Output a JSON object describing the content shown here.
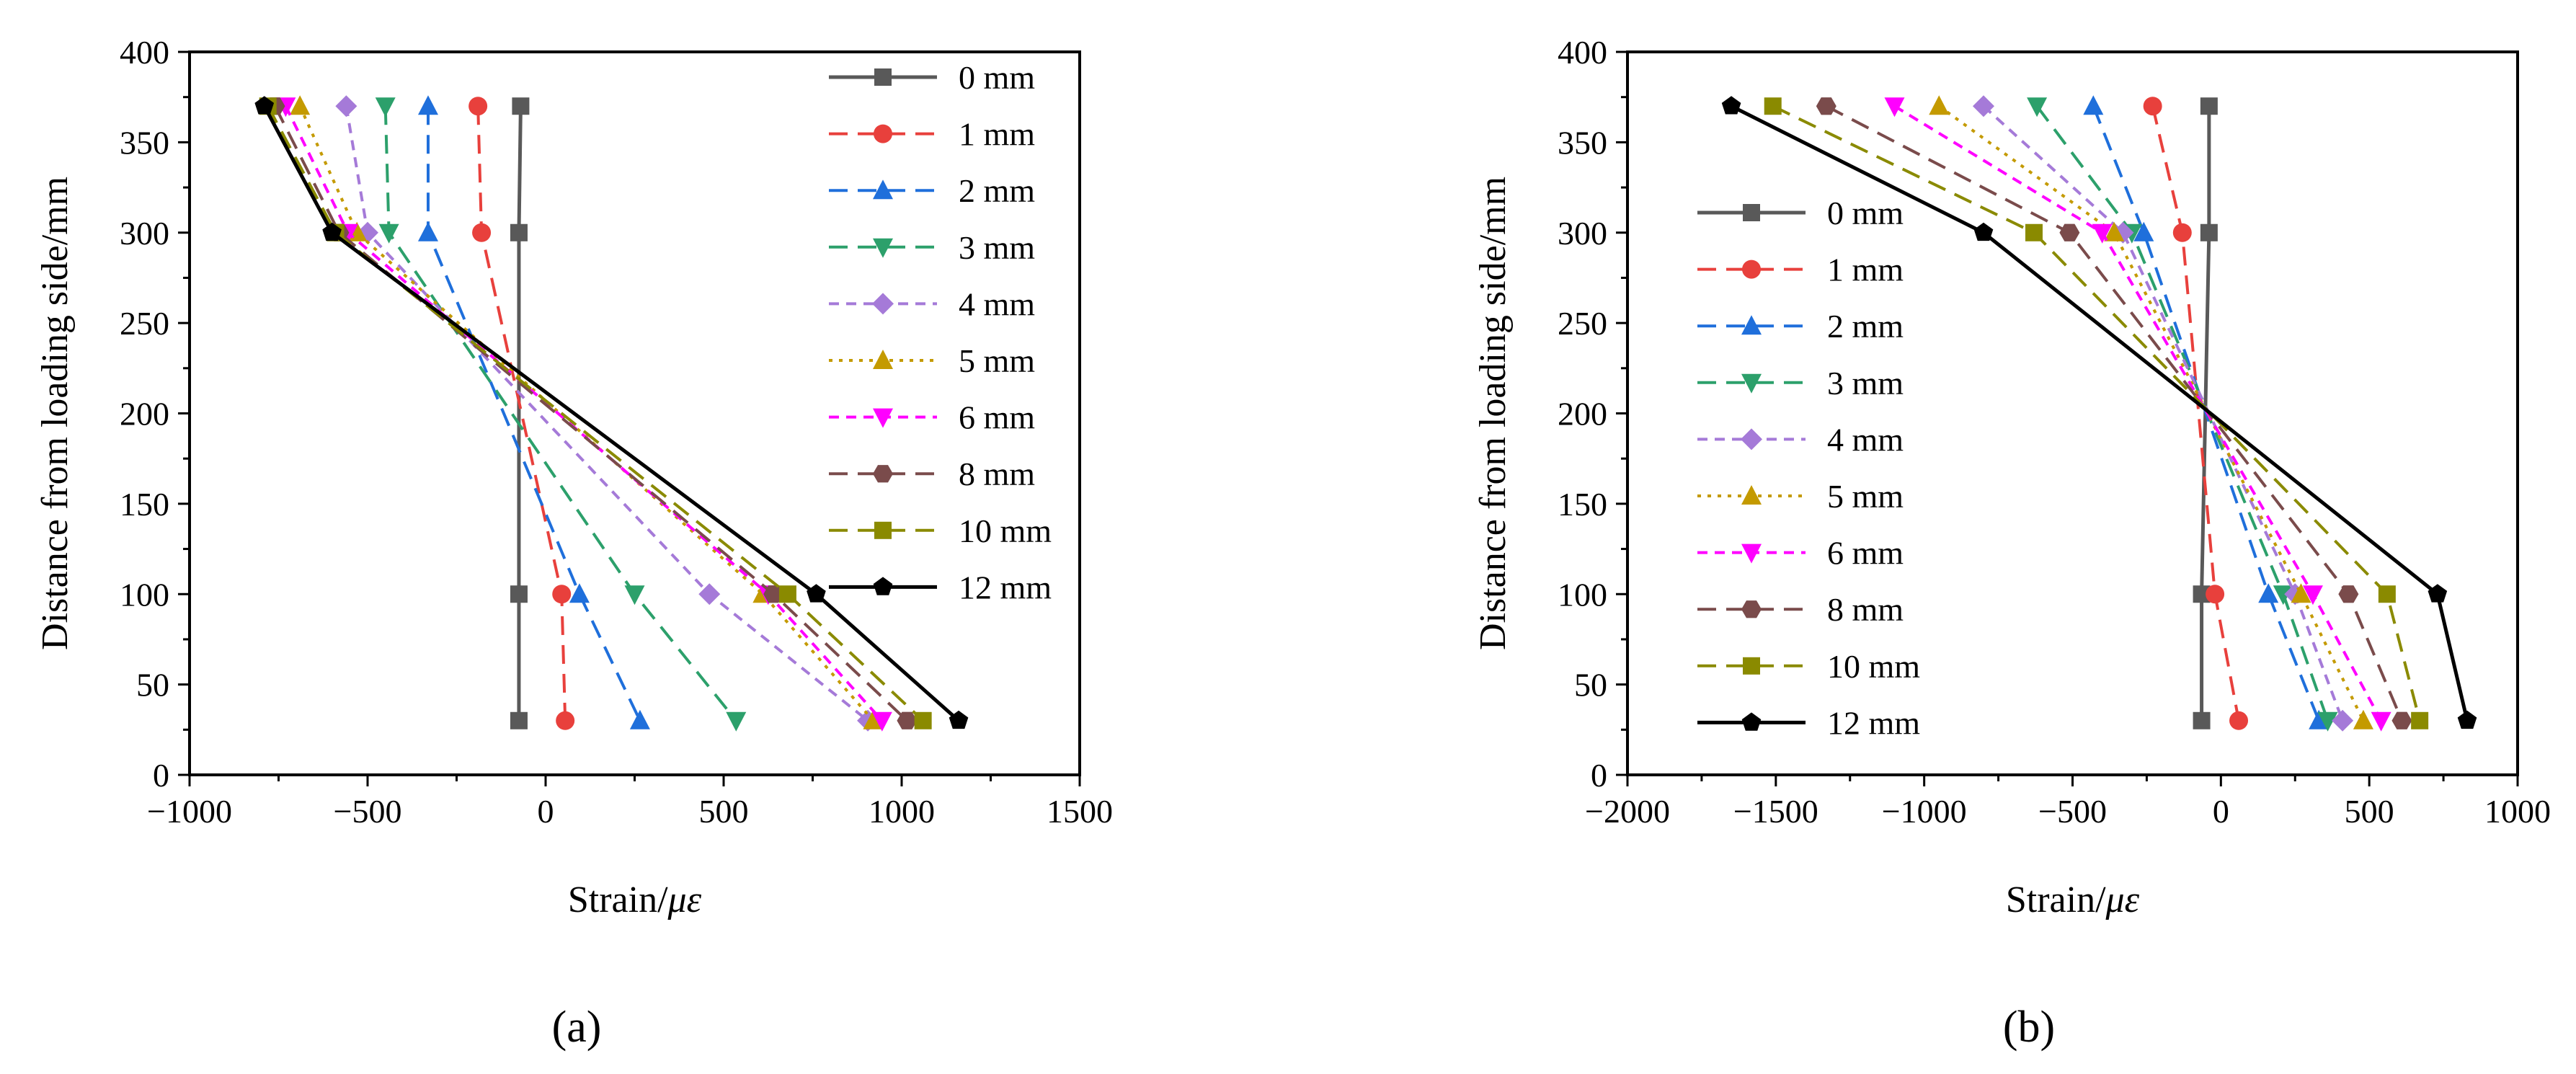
{
  "figure": {
    "panel_labels": [
      "(a)",
      "(b)"
    ]
  },
  "chart_data": [
    {
      "type": "line",
      "panel": "(a)",
      "xlabel_main": "Strain/",
      "xlabel_unit": "με",
      "ylabel": "Distance from loading side/mm",
      "xlim": [
        -1000,
        1500
      ],
      "ylim": [
        0,
        400
      ],
      "xticks": [
        -1000,
        -500,
        0,
        500,
        1000,
        1500
      ],
      "xtick_labels": [
        "−1000",
        "−500",
        "0",
        "500",
        "1000",
        "1500"
      ],
      "yticks": [
        0,
        50,
        100,
        150,
        200,
        250,
        300,
        350,
        400
      ],
      "ytick_labels": [
        "0",
        "50",
        "100",
        "150",
        "200",
        "250",
        "300",
        "350",
        "400"
      ],
      "y": [
        370,
        300,
        100,
        30
      ],
      "legend_position": "top-right",
      "series": [
        {
          "name": "0 mm",
          "x": [
            -70,
            -75,
            -75,
            -75
          ],
          "color": "#595959",
          "marker": "square",
          "dash": "solid"
        },
        {
          "name": "1 mm",
          "x": [
            -190,
            -180,
            45,
            55
          ],
          "color": "#e8403c",
          "marker": "circle",
          "dash": "long"
        },
        {
          "name": "2 mm",
          "x": [
            -330,
            -330,
            95,
            265
          ],
          "color": "#1f6fdb",
          "marker": "triangle",
          "dash": "long"
        },
        {
          "name": "3 mm",
          "x": [
            -450,
            -440,
            250,
            535
          ],
          "color": "#2ca06b",
          "marker": "tri-down",
          "dash": "long"
        },
        {
          "name": "4 mm",
          "x": [
            -560,
            -500,
            460,
            905
          ],
          "color": "#a57ad8",
          "marker": "diamond",
          "dash": "short"
        },
        {
          "name": "5 mm",
          "x": [
            -690,
            -530,
            610,
            920
          ],
          "color": "#c49a00",
          "marker": "triangle",
          "dash": "dot"
        },
        {
          "name": "6 mm",
          "x": [
            -730,
            -555,
            625,
            945
          ],
          "color": "#ff00ff",
          "marker": "tri-down",
          "dash": "short"
        },
        {
          "name": "8 mm",
          "x": [
            -760,
            -580,
            640,
            1015
          ],
          "color": "#7a4b4b",
          "marker": "hexagon",
          "dash": "long"
        },
        {
          "name": "10 mm",
          "x": [
            -780,
            -590,
            680,
            1060
          ],
          "color": "#8a8a00",
          "marker": "square",
          "dash": "long"
        },
        {
          "name": "12 mm",
          "x": [
            -790,
            -600,
            760,
            1160
          ],
          "color": "#000000",
          "marker": "pentagon",
          "dash": "solid"
        }
      ]
    },
    {
      "type": "line",
      "panel": "(b)",
      "xlabel_main": "Strain/",
      "xlabel_unit": "με",
      "ylabel": "Distance from loading side/mm",
      "xlim": [
        -2000,
        1000
      ],
      "ylim": [
        0,
        400
      ],
      "xticks": [
        -2000,
        -1500,
        -1000,
        -500,
        0,
        500,
        1000
      ],
      "xtick_labels": [
        "−2000",
        "−1500",
        "−1000",
        "−500",
        "0",
        "500",
        "1000"
      ],
      "yticks": [
        0,
        50,
        100,
        150,
        200,
        250,
        300,
        350,
        400
      ],
      "ytick_labels": [
        "0",
        "50",
        "100",
        "150",
        "200",
        "250",
        "300",
        "350",
        "400"
      ],
      "y": [
        370,
        300,
        100,
        30
      ],
      "legend_position": "left",
      "series": [
        {
          "name": "0 mm",
          "x": [
            -40,
            -40,
            -65,
            -65
          ],
          "color": "#595959",
          "marker": "square",
          "dash": "solid"
        },
        {
          "name": "1 mm",
          "x": [
            -230,
            -130,
            -20,
            60
          ],
          "color": "#e8403c",
          "marker": "circle",
          "dash": "long"
        },
        {
          "name": "2 mm",
          "x": [
            -430,
            -260,
            160,
            330
          ],
          "color": "#1f6fdb",
          "marker": "triangle",
          "dash": "long"
        },
        {
          "name": "3 mm",
          "x": [
            -620,
            -300,
            210,
            360
          ],
          "color": "#2ca06b",
          "marker": "tri-down",
          "dash": "long"
        },
        {
          "name": "4 mm",
          "x": [
            -800,
            -330,
            250,
            410
          ],
          "color": "#a57ad8",
          "marker": "diamond",
          "dash": "short"
        },
        {
          "name": "5 mm",
          "x": [
            -950,
            -360,
            270,
            480
          ],
          "color": "#c49a00",
          "marker": "triangle",
          "dash": "dot"
        },
        {
          "name": "6 mm",
          "x": [
            -1100,
            -400,
            310,
            540
          ],
          "color": "#ff00ff",
          "marker": "tri-down",
          "dash": "short"
        },
        {
          "name": "8 mm",
          "x": [
            -1330,
            -510,
            430,
            610
          ],
          "color": "#7a4b4b",
          "marker": "hexagon",
          "dash": "long"
        },
        {
          "name": "10 mm",
          "x": [
            -1510,
            -630,
            560,
            670
          ],
          "color": "#8a8a00",
          "marker": "square",
          "dash": "long"
        },
        {
          "name": "12 mm",
          "x": [
            -1650,
            -800,
            730,
            830
          ],
          "color": "#000000",
          "marker": "pentagon",
          "dash": "solid"
        }
      ]
    }
  ]
}
